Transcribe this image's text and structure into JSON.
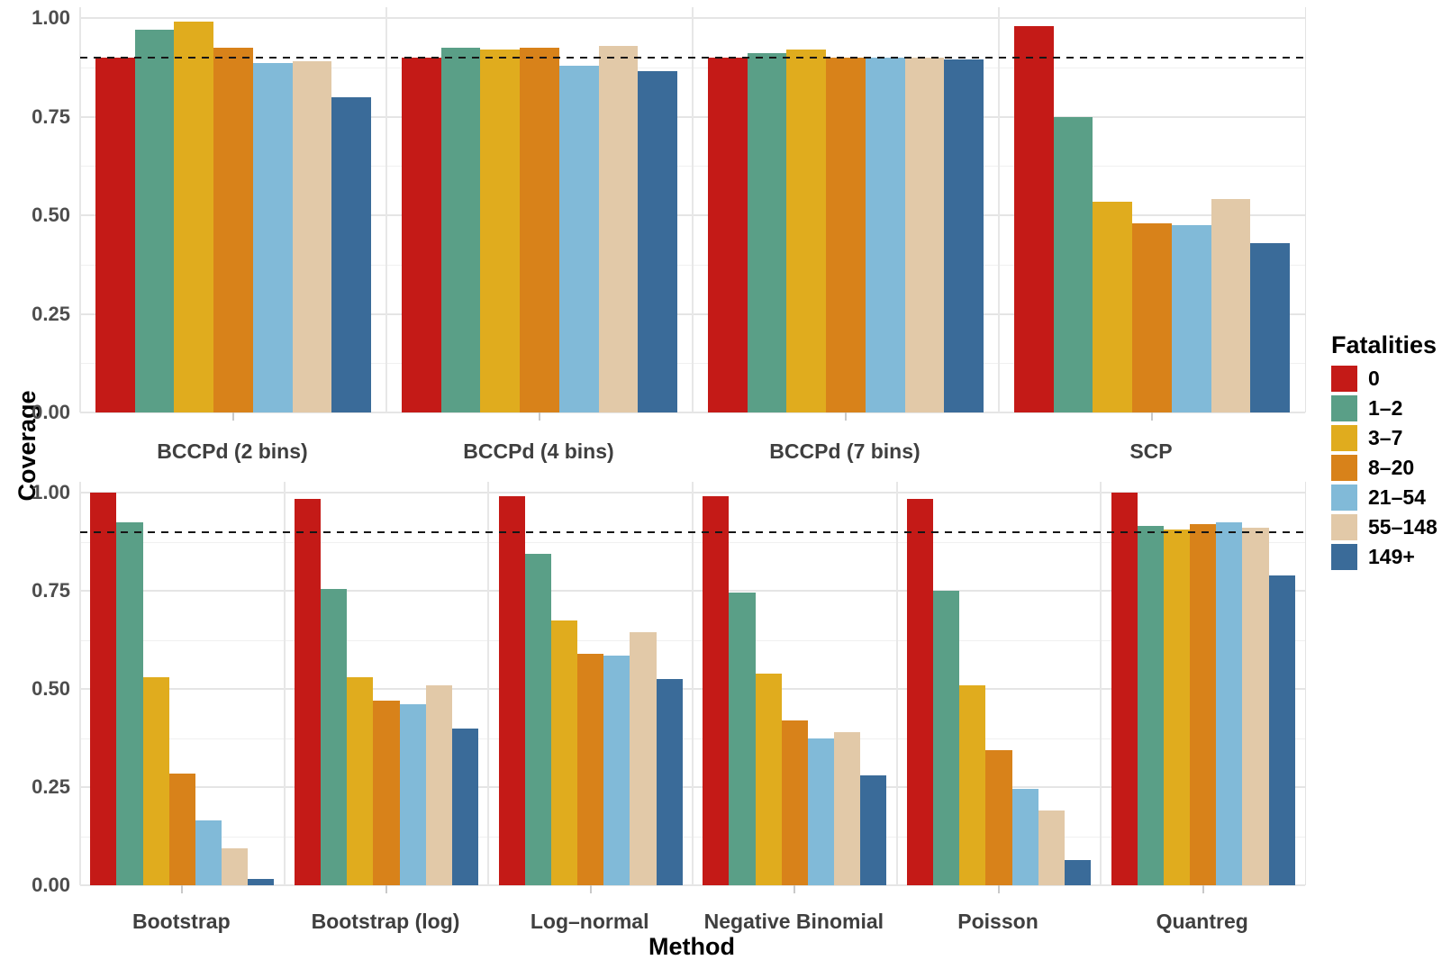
{
  "figure": {
    "y_axis_title": "Coverage",
    "x_axis_title": "Method",
    "legend_title": "Fatalities"
  },
  "chart_data": {
    "type": "bar",
    "title": "",
    "xlabel": "Method",
    "ylabel": "Coverage",
    "ylim": [
      0,
      1
    ],
    "y_tick_values": [
      1.0,
      0.75,
      0.5,
      0.25,
      0.0
    ],
    "y_tick_labels": [
      "1.00",
      "0.75",
      "0.50",
      "0.25",
      "0.00"
    ],
    "y_minor_ticks": [
      0.875,
      0.625,
      0.375,
      0.125
    ],
    "grid": true,
    "reference_line_y": 0.9,
    "reference_line_style": "dashed",
    "legend_position": "right",
    "legend_title": "Fatalities",
    "series": [
      {
        "name": "0",
        "color": "#c41a17"
      },
      {
        "name": "1–2",
        "color": "#5a9f87"
      },
      {
        "name": "3–7",
        "color": "#e0ac1e"
      },
      {
        "name": "8–20",
        "color": "#d8821a"
      },
      {
        "name": "21–54",
        "color": "#81bad8"
      },
      {
        "name": "55–148",
        "color": "#e2c9a8"
      },
      {
        "name": "149+",
        "color": "#3a6b99"
      }
    ],
    "facet_rows": [
      {
        "categories": [
          "BCCPd (2 bins)",
          "BCCPd (4 bins)",
          "BCCPd (7 bins)",
          "SCP"
        ],
        "values": [
          [
            0.9,
            0.97,
            0.99,
            0.925,
            0.885,
            0.89,
            0.8
          ],
          [
            0.9,
            0.925,
            0.92,
            0.925,
            0.88,
            0.93,
            0.865
          ],
          [
            0.9,
            0.91,
            0.92,
            0.9,
            0.9,
            0.9,
            0.895
          ],
          [
            0.98,
            0.75,
            0.535,
            0.48,
            0.475,
            0.54,
            0.43
          ]
        ]
      },
      {
        "categories": [
          "Bootstrap",
          "Bootstrap (log)",
          "Log–normal",
          "Negative Binomial",
          "Poisson",
          "Quantreg"
        ],
        "values": [
          [
            1.0,
            0.925,
            0.53,
            0.285,
            0.165,
            0.095,
            0.015
          ],
          [
            0.985,
            0.755,
            0.53,
            0.47,
            0.46,
            0.51,
            0.4
          ],
          [
            0.99,
            0.845,
            0.675,
            0.59,
            0.585,
            0.645,
            0.525
          ],
          [
            0.99,
            0.745,
            0.54,
            0.42,
            0.375,
            0.39,
            0.28
          ],
          [
            0.985,
            0.75,
            0.51,
            0.345,
            0.245,
            0.19,
            0.065
          ],
          [
            1.0,
            0.915,
            0.905,
            0.92,
            0.925,
            0.91,
            0.79
          ]
        ]
      }
    ]
  }
}
